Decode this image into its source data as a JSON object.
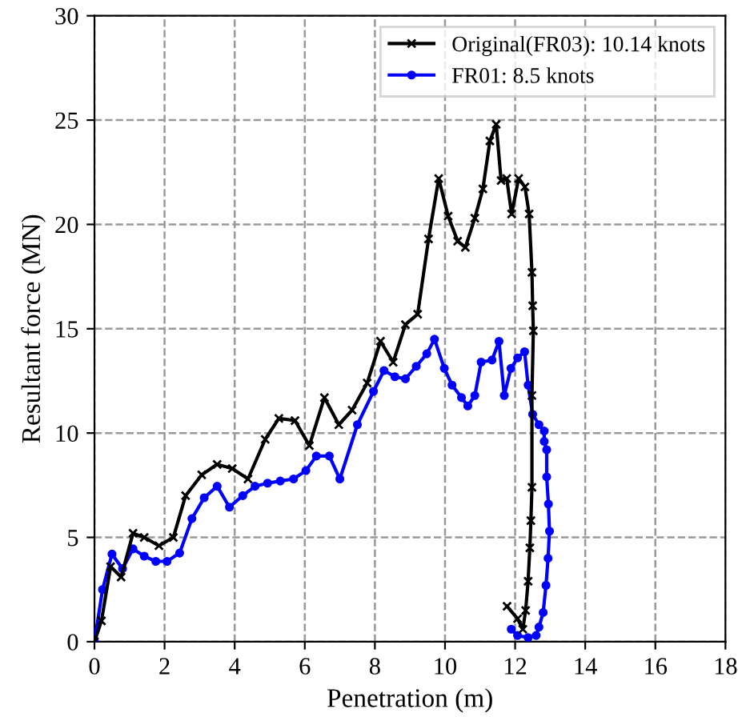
{
  "chart_data": {
    "type": "line",
    "xlabel": "Penetration (m)",
    "ylabel": "Resultant force (MN)",
    "xlim": [
      0,
      18
    ],
    "ylim": [
      0,
      30
    ],
    "xticks": [
      0,
      2,
      4,
      6,
      8,
      10,
      12,
      14,
      16,
      18
    ],
    "yticks": [
      0,
      5,
      10,
      15,
      20,
      25,
      30
    ],
    "grid": true,
    "legend": "top right",
    "line_style": "solid",
    "series": [
      {
        "name": "Original(FR03): 10.14 knots",
        "color": "#000000",
        "marker": "cross",
        "x": [
          0,
          0.2,
          0.46,
          0.76,
          1.1,
          1.42,
          1.84,
          2.25,
          2.6,
          3.06,
          3.5,
          3.93,
          4.38,
          4.87,
          5.26,
          5.72,
          6.13,
          6.56,
          6.97,
          7.35,
          7.78,
          8.16,
          8.52,
          8.87,
          9.22,
          9.53,
          9.82,
          10.09,
          10.36,
          10.58,
          10.85,
          11.08,
          11.28,
          11.46,
          11.6,
          11.76,
          11.9,
          12.1,
          12.28,
          12.4,
          12.48,
          12.5,
          12.52,
          12.48,
          12.48,
          12.45,
          12.42,
          12.37,
          12.3,
          12.22,
          12.07,
          11.77
        ],
        "values": [
          0,
          1.0,
          3.6,
          3.1,
          5.2,
          5.0,
          4.6,
          5.0,
          7.0,
          8.0,
          8.5,
          8.3,
          7.8,
          9.7,
          10.7,
          10.6,
          9.4,
          11.7,
          10.4,
          11.1,
          12.4,
          14.4,
          13.4,
          15.2,
          15.7,
          19.3,
          22.2,
          20.4,
          19.2,
          18.9,
          20.3,
          21.7,
          24.0,
          24.8,
          22.1,
          22.2,
          20.5,
          22.2,
          21.8,
          20.5,
          17.7,
          16.1,
          14.9,
          11.8,
          7.4,
          5.8,
          4.5,
          2.9,
          1.5,
          0.6,
          1.1,
          1.7
        ]
      },
      {
        "name": "FR01: 8.5 knots",
        "color": "#0000ff",
        "marker": "circle",
        "x": [
          0,
          0.23,
          0.5,
          0.8,
          1.1,
          1.42,
          1.75,
          2.07,
          2.43,
          2.78,
          3.13,
          3.5,
          3.85,
          4.23,
          4.58,
          4.94,
          5.3,
          5.68,
          6.03,
          6.33,
          6.7,
          7.0,
          7.5,
          7.96,
          8.26,
          8.57,
          8.87,
          9.18,
          9.48,
          9.7,
          9.98,
          10.2,
          10.47,
          10.65,
          10.85,
          11.03,
          11.34,
          11.54,
          11.69,
          11.88,
          12.07,
          12.27,
          12.37,
          12.5,
          12.68,
          12.83,
          12.83,
          12.9,
          12.9,
          12.95,
          12.98,
          12.94,
          12.88,
          12.8,
          12.68,
          12.6,
          12.37,
          12.07,
          11.89
        ],
        "values": [
          0,
          2.5,
          4.2,
          3.5,
          4.45,
          4.1,
          3.85,
          3.85,
          4.25,
          5.9,
          6.9,
          7.45,
          6.45,
          7.0,
          7.45,
          7.6,
          7.7,
          7.8,
          8.2,
          8.9,
          8.9,
          7.8,
          10.4,
          12.0,
          13.0,
          12.7,
          12.6,
          13.2,
          13.8,
          14.5,
          13.1,
          12.3,
          11.7,
          11.3,
          11.8,
          13.4,
          13.5,
          14.4,
          11.8,
          13.1,
          13.6,
          13.9,
          12.3,
          10.9,
          10.4,
          10.1,
          9.6,
          9.2,
          7.9,
          6.6,
          5.3,
          4.0,
          2.7,
          1.4,
          0.7,
          0.3,
          0.2,
          0.3,
          0.6
        ]
      }
    ]
  }
}
